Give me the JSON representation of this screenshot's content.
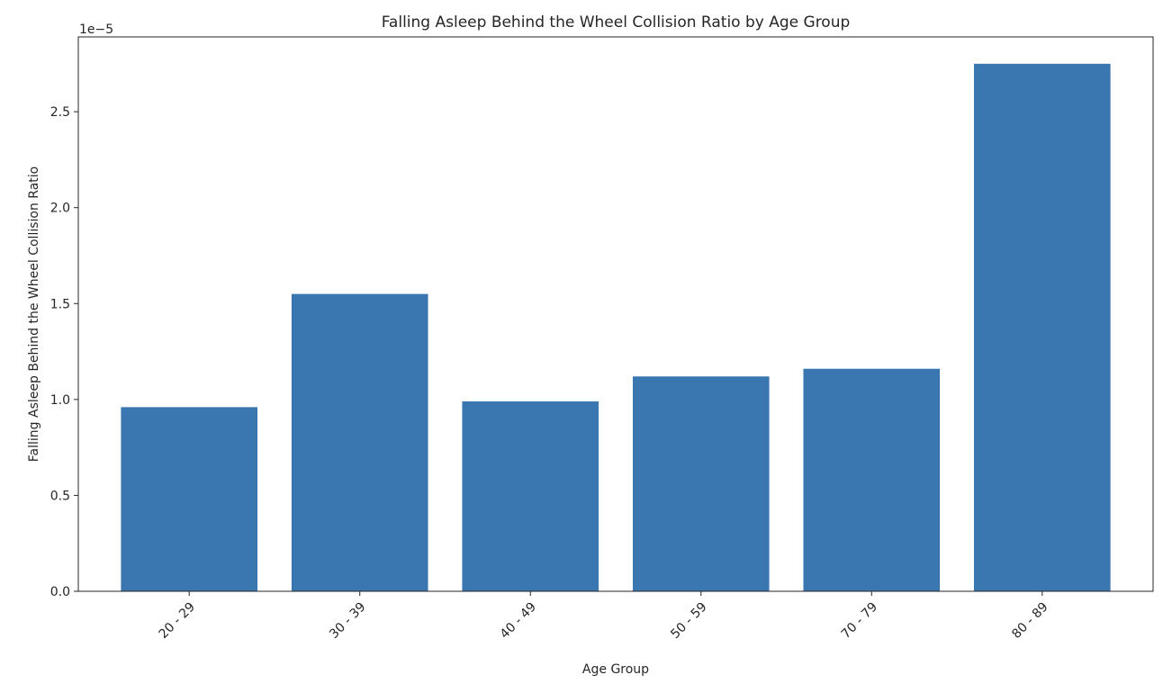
{
  "chart_data": {
    "type": "bar",
    "title": "Falling Asleep Behind the Wheel Collision Ratio by Age Group",
    "xlabel": "Age Group",
    "ylabel": "Falling Asleep Behind the Wheel Collision Ratio",
    "y_offset_label": "1e−5",
    "categories": [
      "20 - 29",
      "30 - 39",
      "40 - 49",
      "50 - 59",
      "70 - 79",
      "80 - 89"
    ],
    "values": [
      9.6e-06,
      1.55e-05,
      9.9e-06,
      1.12e-05,
      1.16e-05,
      2.75e-05
    ],
    "ylim": [
      0,
      2.89e-05
    ],
    "yticks": [
      0,
      5e-06,
      1e-05,
      1.5e-05,
      2e-05,
      2.5e-05
    ],
    "ytick_labels": [
      "0.0",
      "0.5",
      "1.0",
      "1.5",
      "2.0",
      "2.5"
    ],
    "bar_color": "#3a76af",
    "grid": false,
    "legend": "none"
  }
}
